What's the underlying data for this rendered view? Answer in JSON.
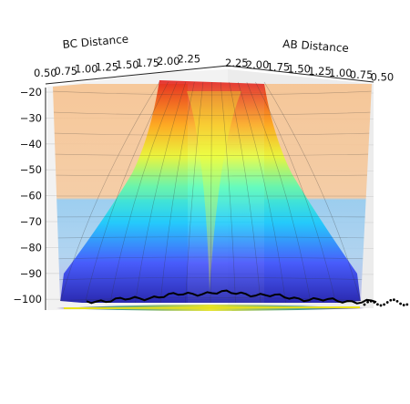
{
  "chart_data": {
    "type": "surface",
    "xlabel": "BC Distance",
    "ylabel": "AB Distance",
    "xticks": [
      "0.50",
      "0.75",
      "1.00",
      "1.25",
      "1.50",
      "1.75",
      "2.00",
      "2.25"
    ],
    "yticks": [
      "2.25",
      "2.00",
      "1.75",
      "1.50",
      "1.25",
      "1.00",
      "0.75",
      "0.50"
    ],
    "zticks": [
      "-20",
      "-30",
      "-40",
      "-50",
      "-60",
      "-70",
      "-80",
      "-90",
      "-100"
    ],
    "xlim": [
      0.5,
      2.25
    ],
    "ylim": [
      0.5,
      2.25
    ],
    "zlim": [
      -105,
      -18
    ],
    "colormap": "jet",
    "surface_alpha": 0.5,
    "trajectory_color": "#000000",
    "contour_at_floor": true,
    "colors": {
      "pane": "#f2f2f2",
      "grid": "#d6d6d6",
      "trajectory": "#000000"
    }
  }
}
